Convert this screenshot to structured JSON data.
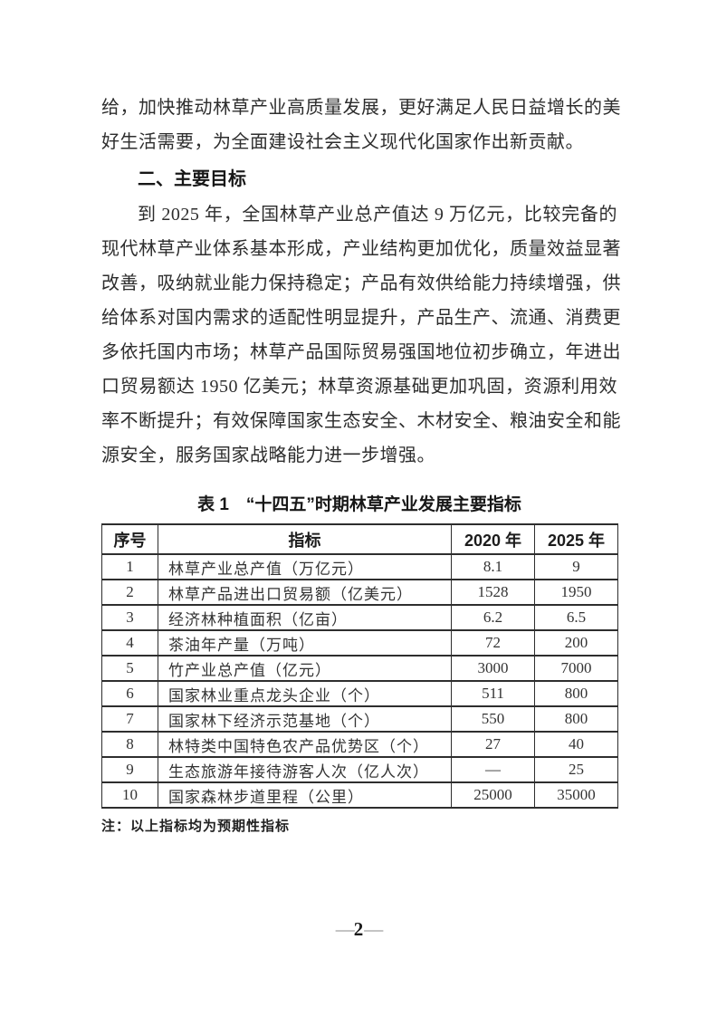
{
  "page": {
    "number": "2",
    "dash": "—"
  },
  "paragraph_continuation": {
    "lines": [
      "给，加快推动林草产业高质量发展，更好满足人民日益增长的美",
      "好生活需要，为全面建设社会主义现代化国家作出新贡献。"
    ]
  },
  "section_heading": "二、主要目标",
  "paragraph_goals": {
    "lines": [
      "到 2025 年，全国林草产业总产值达 9 万亿元，比较完备的",
      "现代林草产业体系基本形成，产业结构更加优化，质量效益显著",
      "改善，吸纳就业能力保持稳定；产品有效供给能力持续增强，供",
      "给体系对国内需求的适配性明显提升，产品生产、流通、消费更",
      "多依托国内市场；林草产品国际贸易强国地位初步确立，年进出",
      "口贸易额达 1950 亿美元；林草资源基础更加巩固，资源利用效",
      "率不断提升；有效保障国家生态安全、木材安全、粮油安全和能",
      "源安全，服务国家战略能力进一步增强。"
    ]
  },
  "table": {
    "title": "表 1　“十四五”时期林草产业发展主要指标",
    "headers": [
      "序号",
      "指标",
      "2020 年",
      "2025 年"
    ],
    "rows": [
      [
        "1",
        "林草产业总产值（万亿元）",
        "8.1",
        "9"
      ],
      [
        "2",
        "林草产品进出口贸易额（亿美元）",
        "1528",
        "1950"
      ],
      [
        "3",
        "经济林种植面积（亿亩）",
        "6.2",
        "6.5"
      ],
      [
        "4",
        "茶油年产量（万吨）",
        "72",
        "200"
      ],
      [
        "5",
        "竹产业总产值（亿元）",
        "3000",
        "7000"
      ],
      [
        "6",
        "国家林业重点龙头企业（个）",
        "511",
        "800"
      ],
      [
        "7",
        "国家林下经济示范基地（个）",
        "550",
        "800"
      ],
      [
        "8",
        "林特类中国特色农产品优势区（个）",
        "27",
        "40"
      ],
      [
        "9",
        "生态旅游年接待游客人次（亿人次）",
        "—",
        "25"
      ],
      [
        "10",
        "国家森林步道里程（公里）",
        "25000",
        "35000"
      ]
    ],
    "note": "注：以上指标均为预期性指标"
  }
}
